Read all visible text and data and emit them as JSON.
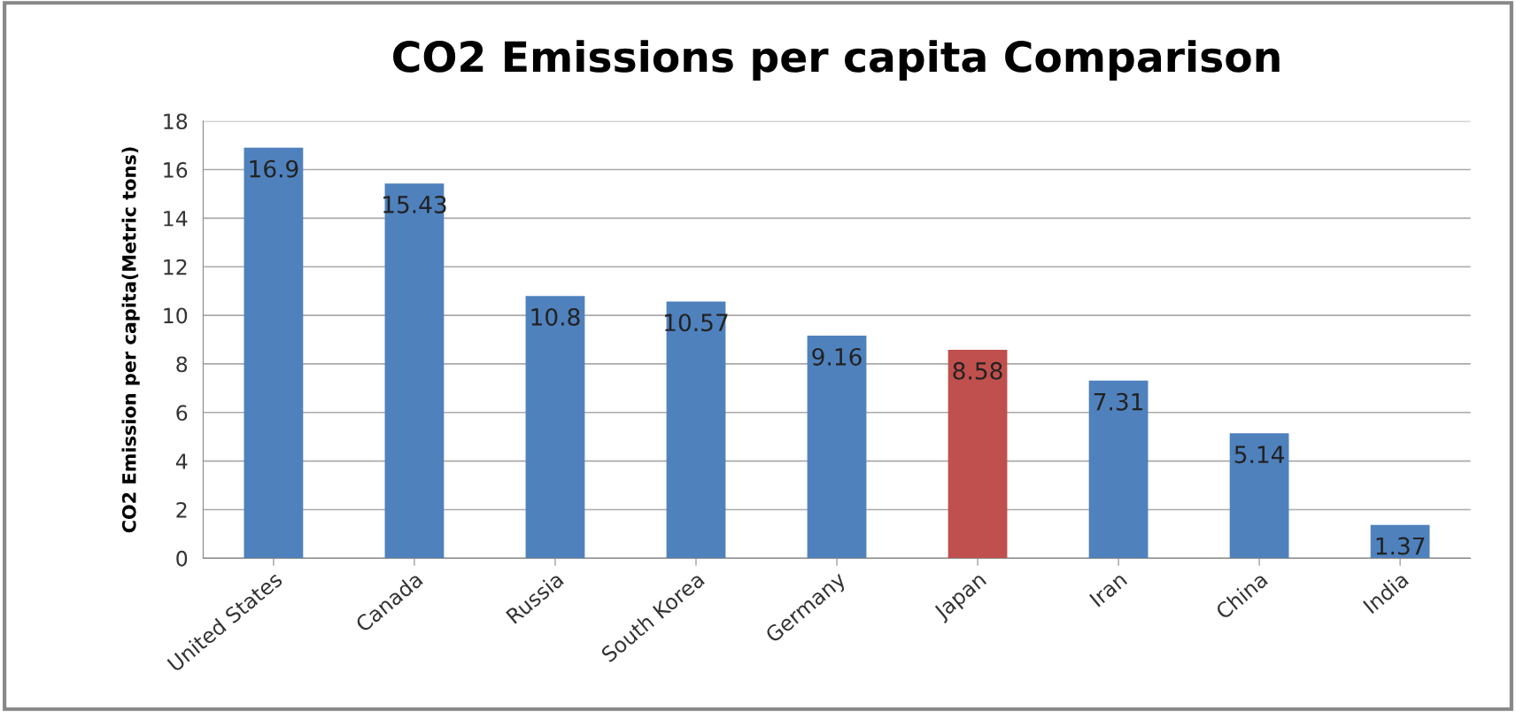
{
  "chart_data": {
    "type": "bar",
    "title": "CO2 Emissions per capita Comparison",
    "ylabel": "CO2 Emission per capita(Metric tons)",
    "categories": [
      "United States",
      "Canada",
      "Russia",
      "South Korea",
      "Germany",
      "Japan",
      "Iran",
      "China",
      "India"
    ],
    "values": [
      16.9,
      15.43,
      10.8,
      10.57,
      9.16,
      8.58,
      7.31,
      5.14,
      1.37
    ],
    "colors": [
      "#4f81bd",
      "#4f81bd",
      "#4f81bd",
      "#4f81bd",
      "#4f81bd",
      "#c0504d",
      "#4f81bd",
      "#4f81bd",
      "#4f81bd"
    ],
    "ylim": [
      0,
      18
    ],
    "yticks": [
      0,
      2,
      4,
      6,
      8,
      10,
      12,
      14,
      16,
      18
    ],
    "grid": "y",
    "data_labels": true,
    "legend": false
  }
}
